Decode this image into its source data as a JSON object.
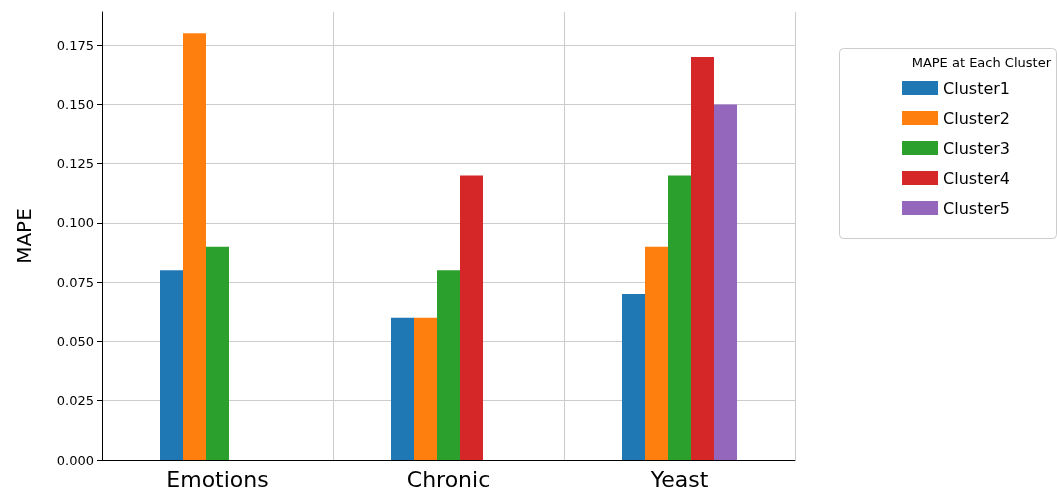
{
  "chart_data": {
    "type": "bar",
    "ylabel": "MAPE",
    "legend_title": "MAPE at Each Cluster",
    "categories": [
      "Emotions",
      "Chronic",
      "Yeast"
    ],
    "series": [
      {
        "name": "Cluster1",
        "color": "#1f77b4",
        "values": [
          0.08,
          0.06,
          0.07
        ]
      },
      {
        "name": "Cluster2",
        "color": "#ff7f0e",
        "values": [
          0.18,
          0.06,
          0.09
        ]
      },
      {
        "name": "Cluster3",
        "color": "#2ca02c",
        "values": [
          0.09,
          0.08,
          0.12
        ]
      },
      {
        "name": "Cluster4",
        "color": "#d62728",
        "values": [
          null,
          0.12,
          0.17
        ]
      },
      {
        "name": "Cluster5",
        "color": "#9467bd",
        "values": [
          null,
          null,
          0.15
        ]
      }
    ],
    "ylim": [
      0,
      0.189
    ],
    "yticks": [
      {
        "value": 0,
        "label": "0.000"
      },
      {
        "value": 0.025,
        "label": "0.025"
      },
      {
        "value": 0.05,
        "label": "0.050"
      },
      {
        "value": 0.075,
        "label": "0.075"
      },
      {
        "value": 0.1,
        "label": "0.100"
      },
      {
        "value": 0.125,
        "label": "0.125"
      },
      {
        "value": 0.15,
        "label": "0.150"
      },
      {
        "value": 0.175,
        "label": "0.175"
      }
    ],
    "grid": true,
    "legend": "right"
  }
}
